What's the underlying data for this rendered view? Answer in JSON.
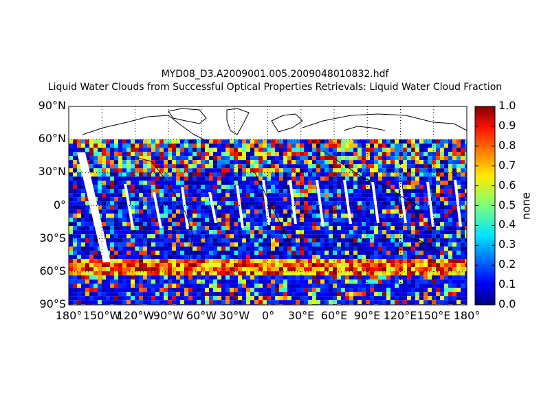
{
  "titles": {
    "line1": "MYD08_D3.A2009001.005.2009048010832.hdf",
    "line2": "Liquid Water Clouds from Successful Optical Properties Retrievals:  Liquid Water Cloud Fraction"
  },
  "map": {
    "projection": "cylindrical",
    "lat_ticks": [
      "90°N",
      "60°N",
      "30°N",
      "0°",
      "30°S",
      "60°S",
      "90°S"
    ],
    "lon_ticks": [
      "180°",
      "150°W",
      "120°W",
      "90°W",
      "60°W",
      "30°W",
      "0°",
      "30°E",
      "60°E",
      "90°E",
      "120°E",
      "150°E",
      "180°"
    ],
    "data_lat_max": 60,
    "colormap": "jet",
    "grid": "dotted"
  },
  "colorbar": {
    "label": "none",
    "ticks": [
      "1.0",
      "0.9",
      "0.8",
      "0.7",
      "0.6",
      "0.5",
      "0.4",
      "0.3",
      "0.2",
      "0.1",
      "0.0"
    ],
    "range": [
      0,
      1
    ]
  }
}
